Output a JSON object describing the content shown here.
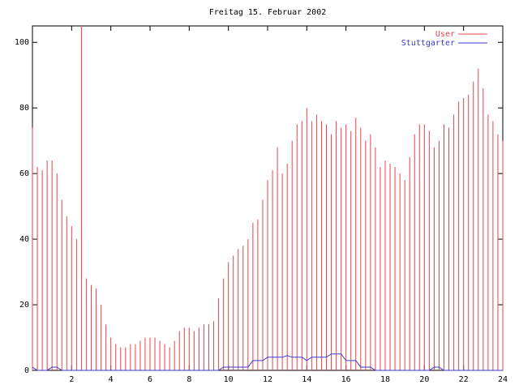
{
  "chart_data": {
    "type": "line",
    "title": "Freitag 15. Februar 2002",
    "x": [
      0,
      0.25,
      0.5,
      0.75,
      1,
      1.25,
      1.5,
      1.75,
      2,
      2.25,
      2.5,
      2.75,
      3,
      3.25,
      3.5,
      3.75,
      4,
      4.25,
      4.5,
      4.75,
      5,
      5.25,
      5.5,
      5.75,
      6,
      6.25,
      6.5,
      6.75,
      7,
      7.25,
      7.5,
      7.75,
      8,
      8.25,
      8.5,
      8.75,
      9,
      9.25,
      9.5,
      9.75,
      10,
      10.25,
      10.5,
      10.75,
      11,
      11.25,
      11.5,
      11.75,
      12,
      12.25,
      12.5,
      12.75,
      13,
      13.25,
      13.5,
      13.75,
      14,
      14.25,
      14.5,
      14.75,
      15,
      15.25,
      15.5,
      15.75,
      16,
      16.25,
      16.5,
      16.75,
      17,
      17.25,
      17.5,
      17.75,
      18,
      18.25,
      18.5,
      18.75,
      19,
      19.25,
      19.5,
      19.75,
      20,
      20.25,
      20.5,
      20.75,
      21,
      21.25,
      21.5,
      21.75,
      22,
      22.25,
      22.5,
      22.75,
      23,
      23.25,
      23.5,
      23.75,
      24
    ],
    "series": [
      {
        "name": "User",
        "color": "#e8454a",
        "style": "impulses",
        "values": [
          74,
          62,
          61,
          64,
          64,
          60,
          52,
          47,
          44,
          40,
          105,
          28,
          26,
          25,
          20,
          14,
          10,
          8,
          7,
          7,
          8,
          8,
          9,
          10,
          10,
          10,
          9,
          8,
          7,
          9,
          12,
          13,
          13,
          12,
          13,
          14,
          14,
          15,
          22,
          28,
          33,
          35,
          37,
          38,
          40,
          45,
          46,
          52,
          58,
          61,
          68,
          60,
          63,
          70,
          75,
          76,
          80,
          76,
          78,
          76,
          75,
          72,
          76,
          74,
          75,
          73,
          77,
          74,
          70,
          72,
          68,
          62,
          64,
          63,
          62,
          60,
          58,
          65,
          72,
          75,
          75,
          73,
          68,
          70,
          75,
          74,
          78,
          82,
          83,
          84,
          88,
          92,
          86,
          78,
          76,
          72,
          70
        ]
      },
      {
        "name": "Stuttgarter",
        "color": "#3a3ad8",
        "style": "lines",
        "values": [
          1,
          0,
          0,
          0,
          1,
          1,
          0,
          0,
          0,
          0,
          0,
          0,
          0,
          0,
          0,
          0,
          0,
          0,
          0,
          0,
          0,
          0,
          0,
          0,
          0,
          0,
          0,
          0,
          0,
          0,
          0,
          0,
          0,
          0,
          0,
          0,
          0,
          0,
          0,
          1,
          1,
          1,
          1,
          1,
          1,
          3,
          3,
          3,
          4,
          4,
          4,
          4,
          4.5,
          4,
          4,
          4,
          3,
          4,
          4,
          4,
          4,
          5,
          5,
          5,
          3,
          3,
          3,
          1,
          1,
          1,
          0,
          0,
          0,
          0,
          0,
          0,
          0,
          0,
          0,
          0,
          0,
          0,
          1,
          1,
          0,
          0,
          0,
          0,
          0,
          0,
          0,
          0,
          0,
          0,
          0,
          0,
          0
        ]
      }
    ],
    "xlim": [
      0,
      24
    ],
    "xticks": [
      2,
      4,
      6,
      8,
      10,
      12,
      14,
      16,
      18,
      20,
      22,
      24
    ],
    "ylim": [
      0,
      105
    ],
    "yticks": [
      0,
      20,
      40,
      60,
      80,
      100
    ],
    "legend": "top-right"
  }
}
